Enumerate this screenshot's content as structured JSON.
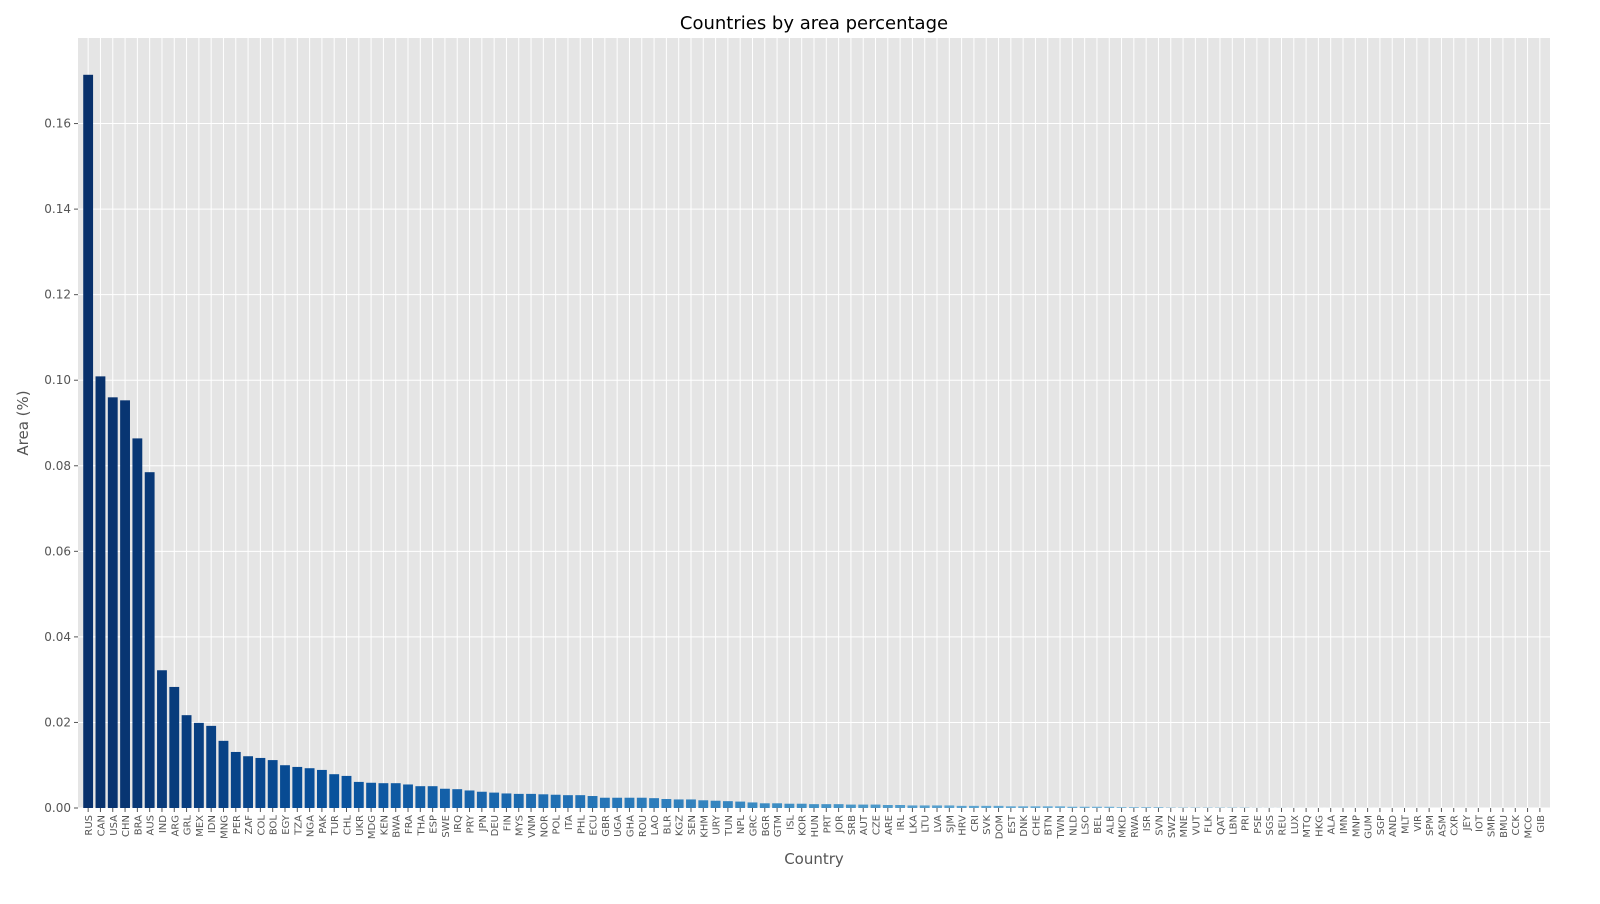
{
  "chart_data": {
    "type": "bar",
    "title": "Countries by area percentage",
    "xlabel": "Country",
    "ylabel": "Area (%)",
    "ylim": [
      0,
      0.18
    ],
    "yticks": [
      "0.00",
      "0.02",
      "0.04",
      "0.06",
      "0.08",
      "0.10",
      "0.12",
      "0.14",
      "0.16"
    ],
    "grid": true,
    "colormap": "Blues (dark to light by rank)",
    "colors": {
      "start": "#08306b",
      "end": "#c6dbef",
      "background": "#e5e5e5"
    },
    "categories": [
      "RUS",
      "CAN",
      "USA",
      "CHN",
      "BRA",
      "AUS",
      "IND",
      "ARG",
      "GRL",
      "MEX",
      "IDN",
      "MNG",
      "PER",
      "ZAF",
      "COL",
      "BOL",
      "EGY",
      "TZA",
      "NGA",
      "PAK",
      "TUR",
      "CHL",
      "UKR",
      "MDG",
      "KEN",
      "BWA",
      "FRA",
      "THA",
      "ESP",
      "SWE",
      "IRQ",
      "PRY",
      "JPN",
      "DEU",
      "FIN",
      "MYS",
      "VNM",
      "NOR",
      "POL",
      "ITA",
      "PHL",
      "ECU",
      "GBR",
      "UGA",
      "GHA",
      "ROU",
      "LAO",
      "BLR",
      "KGZ",
      "SEN",
      "KHM",
      "URY",
      "TUN",
      "NPL",
      "GRC",
      "BGR",
      "GTM",
      "ISL",
      "KOR",
      "HUN",
      "PRT",
      "JOR",
      "SRB",
      "AUT",
      "CZE",
      "ARE",
      "IRL",
      "LKA",
      "LTU",
      "LVA",
      "SJM",
      "HRV",
      "CRI",
      "SVK",
      "DOM",
      "EST",
      "DNK",
      "CHE",
      "BTN",
      "TWN",
      "NLD",
      "LSO",
      "BEL",
      "ALB",
      "MKD",
      "RWA",
      "ISR",
      "SVN",
      "SWZ",
      "MNE",
      "VUT",
      "FLK",
      "QAT",
      "LBN",
      "PRI",
      "PSE",
      "SGS",
      "REU",
      "LUX",
      "MTQ",
      "HKG",
      "ALA",
      "IMN",
      "MNP",
      "GUM",
      "SGP",
      "AND",
      "MLT",
      "VIR",
      "SPM",
      "ASM",
      "CXR",
      "JEY",
      "IOT",
      "SMR",
      "BMU",
      "CCK",
      "MCO",
      "GIB"
    ],
    "values": [
      0.1714,
      0.1009,
      0.096,
      0.0953,
      0.0864,
      0.0785,
      0.0322,
      0.0283,
      0.0217,
      0.0199,
      0.0192,
      0.0157,
      0.0131,
      0.0121,
      0.0117,
      0.0112,
      0.01,
      0.0096,
      0.0093,
      0.0089,
      0.0079,
      0.0075,
      0.0061,
      0.0059,
      0.0058,
      0.0058,
      0.0055,
      0.0051,
      0.0051,
      0.0045,
      0.0044,
      0.0041,
      0.0038,
      0.0036,
      0.0034,
      0.0033,
      0.0033,
      0.0032,
      0.0031,
      0.003,
      0.003,
      0.0028,
      0.0024,
      0.0024,
      0.0024,
      0.0024,
      0.0023,
      0.0021,
      0.002,
      0.002,
      0.0018,
      0.0017,
      0.0016,
      0.0015,
      0.0013,
      0.0011,
      0.0011,
      0.001,
      0.001,
      0.0009,
      0.0009,
      0.0009,
      0.0008,
      0.0008,
      0.0008,
      0.0007,
      0.0007,
      0.0006,
      0.0006,
      0.0006,
      0.0006,
      0.0005,
      0.0005,
      0.0005,
      0.0005,
      0.0004,
      0.0004,
      0.0004,
      0.0004,
      0.0004,
      0.0003,
      0.0003,
      0.0003,
      0.0003,
      0.0002,
      0.0002,
      0.0002,
      0.0002,
      0.0001,
      0.0001,
      0.0001,
      0.0001,
      0.0001,
      0.0001,
      0.0001,
      4e-05,
      3e-05,
      3e-05,
      2e-05,
      1e-05,
      1e-05,
      1e-05,
      1e-05,
      1e-05,
      1e-05,
      5e-06,
      5e-06,
      3e-06,
      3e-06,
      2e-06,
      2e-06,
      1e-06,
      1e-06,
      1e-06,
      1e-06,
      1e-06,
      1e-06,
      1e-06,
      1e-07
    ]
  }
}
